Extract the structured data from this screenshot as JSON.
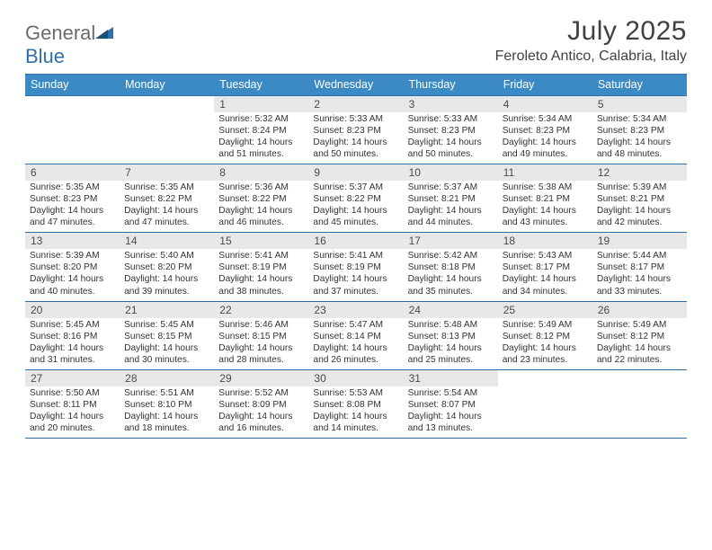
{
  "brand": {
    "part1": "General",
    "part2": "Blue"
  },
  "title": "July 2025",
  "location": "Feroleto Antico, Calabria, Italy",
  "colors": {
    "header_bg": "#3b8ac4",
    "header_text": "#ffffff",
    "border": "#2f6fa8",
    "daynum_bg": "#e8e8e8",
    "text": "#333333",
    "title": "#404040"
  },
  "dow": [
    "Sunday",
    "Monday",
    "Tuesday",
    "Wednesday",
    "Thursday",
    "Friday",
    "Saturday"
  ],
  "weeks": [
    [
      {
        "n": "",
        "b": ""
      },
      {
        "n": "",
        "b": ""
      },
      {
        "n": "1",
        "b": "Sunrise: 5:32 AM\nSunset: 8:24 PM\nDaylight: 14 hours and 51 minutes."
      },
      {
        "n": "2",
        "b": "Sunrise: 5:33 AM\nSunset: 8:23 PM\nDaylight: 14 hours and 50 minutes."
      },
      {
        "n": "3",
        "b": "Sunrise: 5:33 AM\nSunset: 8:23 PM\nDaylight: 14 hours and 50 minutes."
      },
      {
        "n": "4",
        "b": "Sunrise: 5:34 AM\nSunset: 8:23 PM\nDaylight: 14 hours and 49 minutes."
      },
      {
        "n": "5",
        "b": "Sunrise: 5:34 AM\nSunset: 8:23 PM\nDaylight: 14 hours and 48 minutes."
      }
    ],
    [
      {
        "n": "6",
        "b": "Sunrise: 5:35 AM\nSunset: 8:23 PM\nDaylight: 14 hours and 47 minutes."
      },
      {
        "n": "7",
        "b": "Sunrise: 5:35 AM\nSunset: 8:22 PM\nDaylight: 14 hours and 47 minutes."
      },
      {
        "n": "8",
        "b": "Sunrise: 5:36 AM\nSunset: 8:22 PM\nDaylight: 14 hours and 46 minutes."
      },
      {
        "n": "9",
        "b": "Sunrise: 5:37 AM\nSunset: 8:22 PM\nDaylight: 14 hours and 45 minutes."
      },
      {
        "n": "10",
        "b": "Sunrise: 5:37 AM\nSunset: 8:21 PM\nDaylight: 14 hours and 44 minutes."
      },
      {
        "n": "11",
        "b": "Sunrise: 5:38 AM\nSunset: 8:21 PM\nDaylight: 14 hours and 43 minutes."
      },
      {
        "n": "12",
        "b": "Sunrise: 5:39 AM\nSunset: 8:21 PM\nDaylight: 14 hours and 42 minutes."
      }
    ],
    [
      {
        "n": "13",
        "b": "Sunrise: 5:39 AM\nSunset: 8:20 PM\nDaylight: 14 hours and 40 minutes."
      },
      {
        "n": "14",
        "b": "Sunrise: 5:40 AM\nSunset: 8:20 PM\nDaylight: 14 hours and 39 minutes."
      },
      {
        "n": "15",
        "b": "Sunrise: 5:41 AM\nSunset: 8:19 PM\nDaylight: 14 hours and 38 minutes."
      },
      {
        "n": "16",
        "b": "Sunrise: 5:41 AM\nSunset: 8:19 PM\nDaylight: 14 hours and 37 minutes."
      },
      {
        "n": "17",
        "b": "Sunrise: 5:42 AM\nSunset: 8:18 PM\nDaylight: 14 hours and 35 minutes."
      },
      {
        "n": "18",
        "b": "Sunrise: 5:43 AM\nSunset: 8:17 PM\nDaylight: 14 hours and 34 minutes."
      },
      {
        "n": "19",
        "b": "Sunrise: 5:44 AM\nSunset: 8:17 PM\nDaylight: 14 hours and 33 minutes."
      }
    ],
    [
      {
        "n": "20",
        "b": "Sunrise: 5:45 AM\nSunset: 8:16 PM\nDaylight: 14 hours and 31 minutes."
      },
      {
        "n": "21",
        "b": "Sunrise: 5:45 AM\nSunset: 8:15 PM\nDaylight: 14 hours and 30 minutes."
      },
      {
        "n": "22",
        "b": "Sunrise: 5:46 AM\nSunset: 8:15 PM\nDaylight: 14 hours and 28 minutes."
      },
      {
        "n": "23",
        "b": "Sunrise: 5:47 AM\nSunset: 8:14 PM\nDaylight: 14 hours and 26 minutes."
      },
      {
        "n": "24",
        "b": "Sunrise: 5:48 AM\nSunset: 8:13 PM\nDaylight: 14 hours and 25 minutes."
      },
      {
        "n": "25",
        "b": "Sunrise: 5:49 AM\nSunset: 8:12 PM\nDaylight: 14 hours and 23 minutes."
      },
      {
        "n": "26",
        "b": "Sunrise: 5:49 AM\nSunset: 8:12 PM\nDaylight: 14 hours and 22 minutes."
      }
    ],
    [
      {
        "n": "27",
        "b": "Sunrise: 5:50 AM\nSunset: 8:11 PM\nDaylight: 14 hours and 20 minutes."
      },
      {
        "n": "28",
        "b": "Sunrise: 5:51 AM\nSunset: 8:10 PM\nDaylight: 14 hours and 18 minutes."
      },
      {
        "n": "29",
        "b": "Sunrise: 5:52 AM\nSunset: 8:09 PM\nDaylight: 14 hours and 16 minutes."
      },
      {
        "n": "30",
        "b": "Sunrise: 5:53 AM\nSunset: 8:08 PM\nDaylight: 14 hours and 14 minutes."
      },
      {
        "n": "31",
        "b": "Sunrise: 5:54 AM\nSunset: 8:07 PM\nDaylight: 14 hours and 13 minutes."
      },
      {
        "n": "",
        "b": ""
      },
      {
        "n": "",
        "b": ""
      }
    ]
  ]
}
